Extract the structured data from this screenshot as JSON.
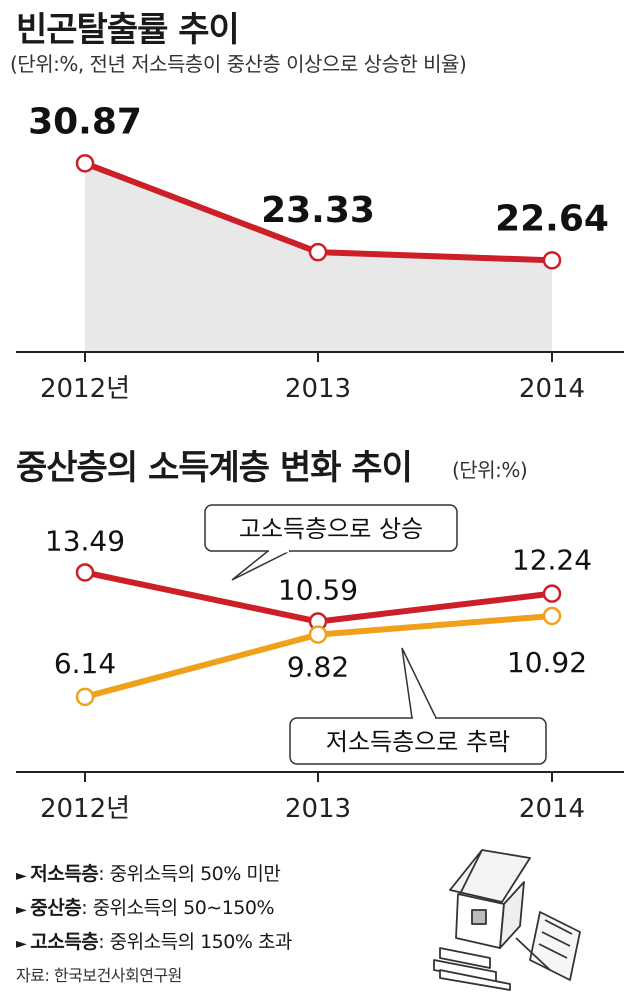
{
  "chart_data": [
    {
      "type": "area",
      "title": "빈곤탈출률 추이",
      "subtitle": "(단위:%, 전년 저소득층이 중산층 이상으로 상승한 비율)",
      "categories": [
        "2012년",
        "2013",
        "2014"
      ],
      "series": [
        {
          "values": [
            30.87,
            23.33,
            22.64
          ],
          "labels": [
            "30.87",
            "23.33",
            "22.64"
          ]
        }
      ],
      "ylim": [
        18,
        32
      ],
      "colors": {
        "line": "#cc1f27",
        "fill": "#e8e8e8",
        "marker_fill": "#ffffff"
      }
    },
    {
      "type": "line",
      "title": "중산층의 소득계층 변화 추이",
      "subtitle": "(단위:%)",
      "categories": [
        "2012년",
        "2013",
        "2014"
      ],
      "series": [
        {
          "values": [
            13.49,
            10.59,
            12.24
          ],
          "labels": [
            "13.49",
            "10.59",
            "12.24"
          ],
          "color": "#cc1f27",
          "callout": "고소득층으로 상승"
        },
        {
          "values": [
            6.14,
            9.82,
            10.92
          ],
          "labels": [
            "6.14",
            "9.82",
            "10.92"
          ],
          "color": "#f0a11b",
          "callout": "저소득층으로 추락"
        }
      ],
      "ylim": [
        3,
        16
      ]
    }
  ],
  "legend": [
    {
      "term": "저소득층",
      "desc": ": 중위소득의 50% 미만"
    },
    {
      "term": "중산층",
      "desc": ": 중위소득의 50∼150%"
    },
    {
      "term": "고소득층",
      "desc": ": 중위소득의 150% 초과"
    }
  ],
  "legend_arrow": "►",
  "source": "자료: 한국보건사회연구원",
  "illustration": "house-falling-illustration"
}
